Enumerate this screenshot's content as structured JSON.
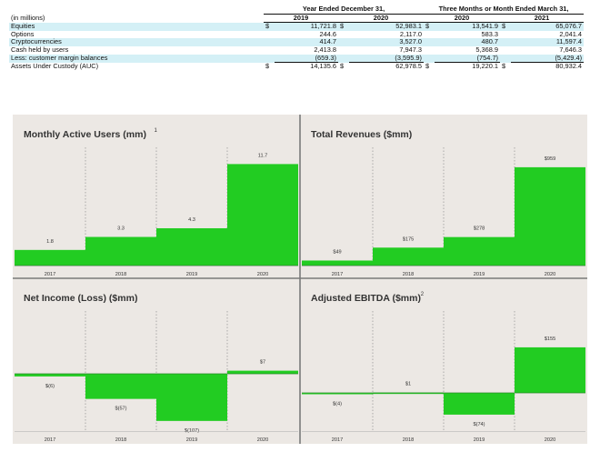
{
  "table": {
    "unit_label": "(in millions)",
    "group_year": "Year Ended December 31,",
    "group_quarter": "Three Months or Month Ended March 31,",
    "years": [
      "2019",
      "2020",
      "2020",
      "2021"
    ],
    "currency": "$",
    "rows": [
      {
        "label": "Equities",
        "values": [
          "11,721.8",
          "52,983.1",
          "13,541.9",
          "65,076.7"
        ],
        "currency": true,
        "highlight": true
      },
      {
        "label": "Options",
        "values": [
          "244.6",
          "2,117.0",
          "583.3",
          "2,041.4"
        ],
        "currency": false,
        "highlight": false
      },
      {
        "label": "Cryptocurrencies",
        "values": [
          "414.7",
          "3,527.0",
          "480.7",
          "11,597.4"
        ],
        "currency": false,
        "highlight": true
      },
      {
        "label": "Cash held by users",
        "values": [
          "2,413.8",
          "7,947.3",
          "5,368.9",
          "7,646.3"
        ],
        "currency": false,
        "highlight": false
      },
      {
        "label": "Less: customer margin balances",
        "values": [
          "(659.3)",
          "(3,595.9)",
          "(754.7)",
          "(5,429.4)"
        ],
        "currency": false,
        "highlight": true
      },
      {
        "label": "Assets Under Custody (AUC)",
        "values": [
          "14,135.6",
          "62,978.5",
          "19,220.1",
          "80,932.4"
        ],
        "currency": true,
        "highlight": false
      }
    ]
  },
  "colors": {
    "bar": "#22cc22",
    "panel_bg": "#ece8e4",
    "divider": "#7a7a7a",
    "table_highlight": "#d4f0f6"
  },
  "chart_data": [
    {
      "type": "bar",
      "title": "Monthly Active Users (mm)",
      "title_sup": "1",
      "categories": [
        "2017",
        "2018",
        "2019",
        "2020"
      ],
      "values": [
        1.8,
        3.3,
        4.3,
        11.7
      ],
      "labels": [
        "1.8",
        "3.3",
        "4.3",
        "11.7"
      ],
      "ylim": [
        0,
        13
      ]
    },
    {
      "type": "bar",
      "title": "Total Revenues ($mm)",
      "title_sup": "",
      "categories": [
        "2017",
        "2018",
        "2019",
        "2020"
      ],
      "values": [
        49,
        175,
        278,
        959
      ],
      "labels": [
        "$49",
        "$175",
        "$278",
        "$959"
      ],
      "ylim": [
        0,
        1100
      ]
    },
    {
      "type": "bar",
      "title": "Net Income (Loss) ($mm)",
      "title_sup": "",
      "categories": [
        "2017",
        "2018",
        "2019",
        "2020"
      ],
      "values": [
        -6,
        -57,
        -107,
        7
      ],
      "labels": [
        "$(6)",
        "$(57)",
        "$(107)",
        "$7"
      ],
      "ylim": [
        -130,
        130
      ]
    },
    {
      "type": "bar",
      "title": "Adjusted EBITDA ($mm)",
      "title_sup": "2",
      "categories": [
        "2017",
        "2018",
        "2019",
        "2020"
      ],
      "values": [
        -4,
        1,
        -74,
        155
      ],
      "labels": [
        "$(4)",
        "$1",
        "$(74)",
        "$155"
      ],
      "ylim": [
        -130,
        260
      ]
    }
  ]
}
